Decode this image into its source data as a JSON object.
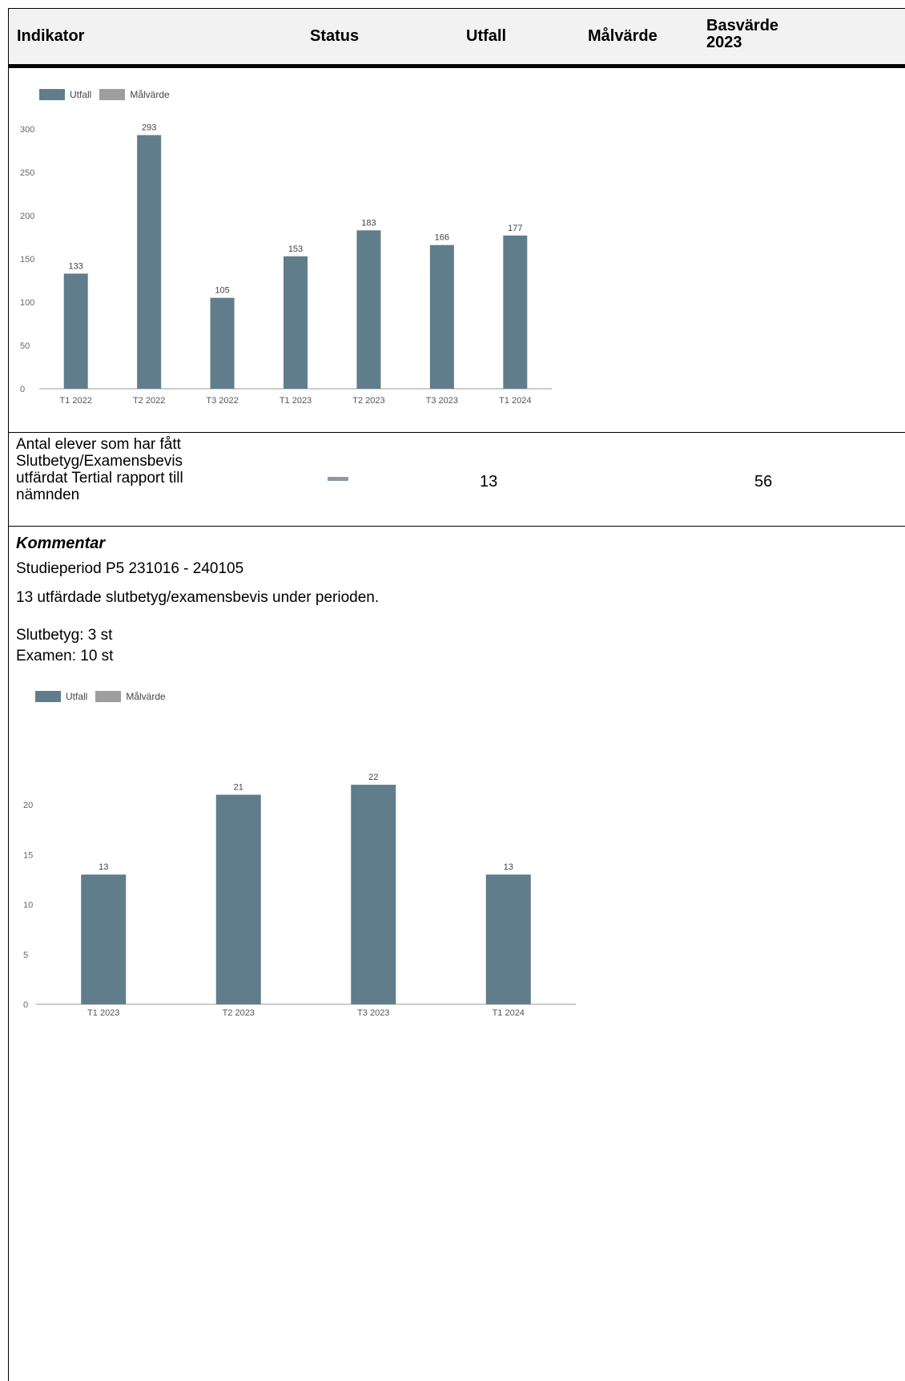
{
  "table": {
    "headers": {
      "indicator": "Indikator",
      "status": "Status",
      "utfall": "Utfall",
      "malvarde": "Målvärde",
      "basvarde_line1": "Basvärde",
      "basvarde_line2": "2023"
    },
    "row": {
      "indicator_lines": [
        "Antal elever som har fått",
        "Slutbetyg/Examensbevis",
        "utfärdat Tertial rapport till",
        "nämnden"
      ],
      "status_icon": "dash-icon",
      "utfall": "13",
      "malvarde": "",
      "basvarde": "56"
    }
  },
  "comment": {
    "title": "Kommentar",
    "lines": [
      "Studieperiod P5 231016 - 240105",
      "13 utfärdade slutbetyg/examensbevis under perioden.",
      "Slutbetyg: 3 st",
      "Examen: 10 st"
    ]
  },
  "colors": {
    "utfall": "#607d8b",
    "malvarde": "#9e9e9e"
  },
  "chart_data": [
    {
      "type": "bar",
      "legend": [
        "Utfall",
        "Målvärde"
      ],
      "legend_position": "top-left",
      "categories": [
        "T1 2022",
        "T2 2022",
        "T3 2022",
        "T1 2023",
        "T2 2023",
        "T3 2023",
        "T1 2024"
      ],
      "series": [
        {
          "name": "Utfall",
          "values": [
            133,
            293,
            105,
            153,
            183,
            166,
            177
          ]
        }
      ],
      "yticks": [
        0,
        50,
        100,
        150,
        200,
        250,
        300
      ],
      "ylim": [
        0,
        300
      ],
      "grid": false
    },
    {
      "type": "bar",
      "legend": [
        "Utfall",
        "Målvärde"
      ],
      "legend_position": "top-left",
      "categories": [
        "T1 2023",
        "T2 2023",
        "T3 2023",
        "T1 2024"
      ],
      "series": [
        {
          "name": "Utfall",
          "values": [
            13,
            21,
            22,
            13
          ]
        }
      ],
      "yticks": [
        0,
        5,
        10,
        15,
        20
      ],
      "ylim": [
        0,
        20
      ],
      "grid": false
    }
  ]
}
